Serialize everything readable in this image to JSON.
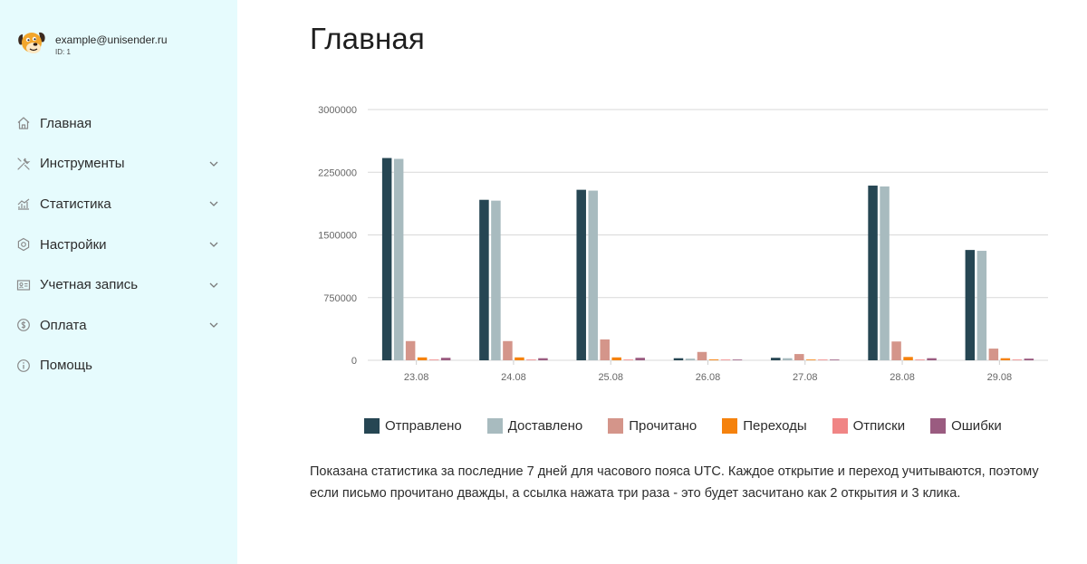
{
  "account": {
    "email": "example@unisender.ru",
    "id_label": "ID: 1"
  },
  "menu": [
    {
      "label": "Главная",
      "icon": "home-icon",
      "has_submenu": false
    },
    {
      "label": "Инструменты",
      "icon": "tools-icon",
      "has_submenu": true
    },
    {
      "label": "Статистика",
      "icon": "stats-icon",
      "has_submenu": true
    },
    {
      "label": "Настройки",
      "icon": "gear-icon",
      "has_submenu": true
    },
    {
      "label": "Учетная запись",
      "icon": "id-card-icon",
      "has_submenu": true
    },
    {
      "label": "Оплата",
      "icon": "dollar-icon",
      "has_submenu": true
    },
    {
      "label": "Помощь",
      "icon": "info-icon",
      "has_submenu": false
    }
  ],
  "page": {
    "title": "Главная",
    "note": "Показана статистика за последние 7 дней для часового пояса UTC. Каждое открытие и переход учитываются, поэтому если письмо прочитано дважды, а ссылка нажата три раза - это будет засчитано как 2 открытия и 3 клика."
  },
  "colors": {
    "sidebar_bg": "#e6fbfd",
    "grid": "#d9d9d9"
  },
  "chart_data": {
    "type": "bar",
    "categories": [
      "23.08",
      "24.08",
      "25.08",
      "26.08",
      "27.08",
      "28.08",
      "29.08"
    ],
    "ylim": [
      0,
      3000000
    ],
    "yticks": [
      0,
      750000,
      1500000,
      2250000,
      3000000
    ],
    "ytick_labels": [
      "0",
      "750000",
      "1500000",
      "2250000",
      "3000000"
    ],
    "grid": true,
    "legend_position": "bottom",
    "series": [
      {
        "name": "Отправлено",
        "color": "#264653",
        "values": [
          2420000,
          1920000,
          2040000,
          25000,
          30000,
          2090000,
          1320000
        ]
      },
      {
        "name": "Доставлено",
        "color": "#a8bbbf",
        "values": [
          2410000,
          1910000,
          2030000,
          20000,
          25000,
          2080000,
          1310000
        ]
      },
      {
        "name": "Прочитано",
        "color": "#d4958a",
        "values": [
          230000,
          230000,
          250000,
          100000,
          75000,
          225000,
          140000
        ]
      },
      {
        "name": "Переходы",
        "color": "#f5820d",
        "values": [
          35000,
          35000,
          35000,
          10000,
          8000,
          40000,
          25000
        ]
      },
      {
        "name": "Отписки",
        "color": "#f08585",
        "values": [
          3000,
          3000,
          3000,
          1000,
          1000,
          3000,
          2000
        ]
      },
      {
        "name": "Ошибки",
        "color": "#9a5b80",
        "values": [
          30000,
          25000,
          30000,
          5000,
          5000,
          25000,
          20000
        ]
      }
    ]
  }
}
